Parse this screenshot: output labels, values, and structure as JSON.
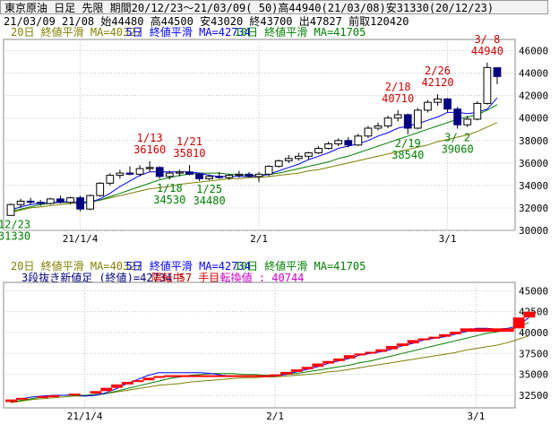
{
  "header": {
    "title": "東京原油 日足 先限 期間20/12/23～21/03/09( 50)高44940(21/03/08)安31330(20/12/23)",
    "ohlc": "21/03/09 21/08 始44480 高44500 安43020 終43700 出47827 前取120420"
  },
  "colors": {
    "ma20": "#808000",
    "ma5": "#0000ff",
    "ma10": "#008000",
    "up": "#000000",
    "down": "#000080",
    "brick": "#ff0000",
    "hilo_label": "#cc0000",
    "low_label": "#008000"
  },
  "chart_data": [
    {
      "type": "candlestick",
      "legend": [
        {
          "label": "20日 終値平滑 MA=40327",
          "color": "#808000"
        },
        {
          "label": "5日 終値平滑 MA=42734",
          "color": "#0000ff"
        },
        {
          "label": "10日 終値平滑 MA=41705",
          "color": "#008000"
        }
      ],
      "ylim": [
        30000,
        47000
      ],
      "yticks": [
        30000,
        32000,
        34000,
        36000,
        38000,
        40000,
        42000,
        44000,
        46000
      ],
      "xticks": [
        {
          "i": 7,
          "label": "21/1/4"
        },
        {
          "i": 25,
          "label": "2/1"
        },
        {
          "i": 44,
          "label": "3/1"
        }
      ],
      "candles": [
        [
          31330,
          32400,
          31330,
          32300
        ],
        [
          32300,
          32800,
          32000,
          32600
        ],
        [
          32600,
          32900,
          32300,
          32500
        ],
        [
          32500,
          32700,
          32200,
          32400
        ],
        [
          32400,
          32900,
          32300,
          32800
        ],
        [
          32800,
          33100,
          32400,
          32500
        ],
        [
          32500,
          33000,
          32300,
          32900
        ],
        [
          32900,
          33100,
          31700,
          31900
        ],
        [
          31900,
          33200,
          31800,
          33100
        ],
        [
          33100,
          34300,
          33000,
          34200
        ],
        [
          34200,
          35100,
          34000,
          34900
        ],
        [
          34900,
          35400,
          34600,
          35100
        ],
        [
          35100,
          35700,
          34900,
          35000
        ],
        [
          35000,
          35800,
          34800,
          35500
        ],
        [
          35500,
          36160,
          35200,
          35600
        ],
        [
          35600,
          35700,
          34600,
          34800
        ],
        [
          34800,
          35300,
          34530,
          35100
        ],
        [
          35100,
          35400,
          34800,
          35200
        ],
        [
          35200,
          35810,
          34900,
          35000
        ],
        [
          35000,
          35100,
          34400,
          34600
        ],
        [
          34600,
          35000,
          34480,
          34800
        ],
        [
          34800,
          35200,
          34600,
          34700
        ],
        [
          34700,
          35000,
          34500,
          34900
        ],
        [
          34900,
          35300,
          34700,
          35000
        ],
        [
          35000,
          35200,
          34700,
          34800
        ],
        [
          34800,
          35200,
          34300,
          35000
        ],
        [
          35000,
          35800,
          34800,
          35700
        ],
        [
          35700,
          36300,
          35600,
          36200
        ],
        [
          36200,
          36700,
          36000,
          36400
        ],
        [
          36400,
          36900,
          36200,
          36600
        ],
        [
          36600,
          37000,
          36300,
          36900
        ],
        [
          36900,
          37500,
          36800,
          37300
        ],
        [
          37300,
          37900,
          37200,
          37700
        ],
        [
          37700,
          38200,
          37500,
          38000
        ],
        [
          38000,
          38300,
          37400,
          37600
        ],
        [
          37600,
          38600,
          37500,
          38400
        ],
        [
          38400,
          39300,
          38200,
          39100
        ],
        [
          39100,
          39600,
          38900,
          39300
        ],
        [
          39300,
          40200,
          39100,
          40000
        ],
        [
          40000,
          40710,
          39700,
          40300
        ],
        [
          40300,
          40400,
          38540,
          39100
        ],
        [
          39100,
          40900,
          39000,
          40700
        ],
        [
          40700,
          41600,
          40500,
          41400
        ],
        [
          41400,
          42120,
          41100,
          41700
        ],
        [
          41700,
          41800,
          40500,
          40800
        ],
        [
          40800,
          41000,
          39060,
          39400
        ],
        [
          39400,
          40200,
          39200,
          39900
        ],
        [
          39900,
          41500,
          39800,
          41300
        ],
        [
          41300,
          44940,
          41200,
          44500
        ],
        [
          44480,
          44500,
          43020,
          43700
        ]
      ],
      "ma20": [
        31600,
        31800,
        32000,
        32100,
        32200,
        32300,
        32400,
        32400,
        32500,
        32700,
        32900,
        33100,
        33300,
        33500,
        33700,
        33800,
        33900,
        34100,
        34200,
        34300,
        34400,
        34500,
        34600,
        34600,
        34700,
        34700,
        34800,
        34900,
        35000,
        35100,
        35300,
        35400,
        35600,
        35800,
        36000,
        36200,
        36400,
        36600,
        36800,
        37000,
        37200,
        37400,
        37600,
        37900,
        38100,
        38300,
        38500,
        38800,
        39200,
        39600
      ],
      "ma5": [
        31800,
        32100,
        32300,
        32400,
        32500,
        32500,
        32600,
        32400,
        32500,
        32800,
        33300,
        33900,
        34400,
        34900,
        35200,
        35200,
        35200,
        35200,
        35200,
        35100,
        34900,
        34800,
        34800,
        34800,
        34800,
        34800,
        35000,
        35300,
        35600,
        35900,
        36300,
        36600,
        36900,
        37300,
        37500,
        37700,
        38000,
        38400,
        38700,
        39100,
        39300,
        39500,
        39800,
        40100,
        40500,
        40500,
        40400,
        40500,
        40800,
        41800
      ],
      "ma10": [
        31700,
        31900,
        32100,
        32300,
        32400,
        32500,
        32500,
        32500,
        32600,
        32700,
        33000,
        33300,
        33600,
        33900,
        34200,
        34500,
        34700,
        34900,
        35000,
        35100,
        35100,
        35100,
        35000,
        35000,
        34900,
        34900,
        35000,
        35100,
        35300,
        35500,
        35700,
        35900,
        36100,
        36400,
        36600,
        36900,
        37200,
        37500,
        37800,
        38100,
        38400,
        38700,
        39000,
        39300,
        39600,
        39900,
        40100,
        40300,
        40700,
        41200
      ],
      "annotations": [
        {
          "i": 14,
          "date": "1/13",
          "value": "36160",
          "pos": "above",
          "color": "#cc0000"
        },
        {
          "i": 18,
          "date": "1/21",
          "value": "35810",
          "pos": "above",
          "color": "#cc0000"
        },
        {
          "i": 39,
          "date": "2/18",
          "value": "40710",
          "pos": "above",
          "color": "#cc0000"
        },
        {
          "i": 43,
          "date": "2/26",
          "value": "42120",
          "pos": "above",
          "color": "#cc0000"
        },
        {
          "i": 48,
          "date": "3/ 8",
          "value": "44940",
          "pos": "above",
          "color": "#cc0000"
        },
        {
          "i": 16,
          "date": "1/18",
          "value": "34530",
          "pos": "below",
          "color": "#008000"
        },
        {
          "i": 20,
          "date": "1/25",
          "value": "34480",
          "pos": "below",
          "color": "#008000"
        },
        {
          "i": 40,
          "date": "2/19",
          "value": "38540",
          "pos": "below",
          "color": "#008000"
        },
        {
          "i": 45,
          "date": "3/ 2",
          "value": "39060",
          "pos": "below",
          "color": "#008000"
        },
        {
          "i": 0,
          "date": "12/23",
          "value": "31330",
          "pos": "below",
          "color": "#008000"
        }
      ]
    },
    {
      "type": "three-line-break",
      "legend": [
        {
          "label": "20日 終値平滑 MA=40327",
          "color": "#808000"
        },
        {
          "label": "5日 終値平滑 MA=42734",
          "color": "#0000ff"
        },
        {
          "label": "10日 終値平滑 MA=41705",
          "color": "#008000"
        }
      ],
      "info": [
        {
          "text": "3段抜き新値足 (終値)=42734",
          "color": "#000080"
        },
        {
          "text": "陽転中",
          "color": "#cc0000"
        },
        {
          "text": "57 手目",
          "color": "#cc0000"
        },
        {
          "text": "転換値 : 40744",
          "color": "#cc00cc"
        }
      ],
      "ylim": [
        31000,
        46000
      ],
      "yticks": [
        32500,
        35000,
        37500,
        40000,
        42500,
        45000
      ],
      "ytick_labels": [
        "32500",
        "35000",
        "37500",
        "40000",
        "42500",
        "45000"
      ],
      "xticks": [
        {
          "i": 7,
          "label": "21/1/4"
        },
        {
          "i": 25,
          "label": "2/1"
        },
        {
          "i": 44,
          "label": "3/1"
        }
      ],
      "bricks": [
        [
          0,
          31700,
          32000
        ],
        [
          1,
          32000,
          32200
        ],
        [
          3,
          32200,
          32400
        ],
        [
          4,
          32400,
          32500
        ],
        [
          6,
          32500,
          32700
        ],
        [
          8,
          32700,
          33000
        ],
        [
          9,
          33000,
          33400
        ],
        [
          10,
          33400,
          33800
        ],
        [
          11,
          33800,
          34100
        ],
        [
          12,
          34100,
          34300
        ],
        [
          13,
          34300,
          34600
        ],
        [
          14,
          34600,
          34800
        ],
        [
          15,
          34700,
          34900
        ],
        [
          16,
          34700,
          34900
        ],
        [
          17,
          34700,
          34900
        ],
        [
          18,
          34700,
          34900
        ],
        [
          19,
          34700,
          34900
        ],
        [
          20,
          34700,
          34900
        ],
        [
          21,
          34700,
          34900
        ],
        [
          22,
          34700,
          34900
        ],
        [
          23,
          34700,
          34900
        ],
        [
          24,
          34700,
          34900
        ],
        [
          25,
          34800,
          35000
        ],
        [
          26,
          35000,
          35300
        ],
        [
          27,
          35300,
          35600
        ],
        [
          28,
          35600,
          35900
        ],
        [
          29,
          35900,
          36300
        ],
        [
          30,
          36300,
          36600
        ],
        [
          31,
          36600,
          36900
        ],
        [
          32,
          36900,
          37300
        ],
        [
          33,
          37300,
          37500
        ],
        [
          34,
          37500,
          37700
        ],
        [
          35,
          37700,
          38000
        ],
        [
          36,
          38000,
          38400
        ],
        [
          37,
          38400,
          38700
        ],
        [
          38,
          38700,
          39100
        ],
        [
          39,
          39100,
          39300
        ],
        [
          40,
          39300,
          39500
        ],
        [
          41,
          39500,
          39800
        ],
        [
          42,
          39800,
          40100
        ],
        [
          43,
          40100,
          40500
        ],
        [
          44,
          40100,
          40500
        ],
        [
          45,
          40100,
          40500
        ],
        [
          46,
          40100,
          40500
        ],
        [
          47,
          40100,
          40500
        ],
        [
          48,
          40500,
          41800
        ],
        [
          49,
          41800,
          42500
        ]
      ]
    }
  ]
}
